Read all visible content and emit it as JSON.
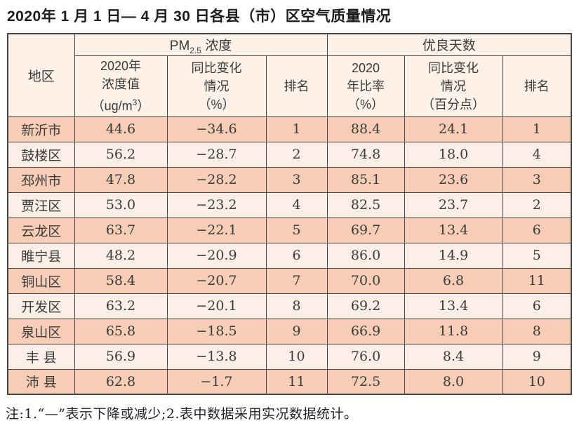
{
  "page": {
    "title": "2020年 1 月 1 日— 4 月 30 日各县（市）区空气质量情况",
    "footnote": "注:1.“—”表示下降或减少;2.表中数据采用实况数据统计。"
  },
  "colors": {
    "row_dark": "#f8cdb5",
    "row_light": "#fdeee8",
    "header_bg": "#fdf1e8",
    "border": "#454545",
    "text": "#3b3b3b"
  },
  "table": {
    "header": {
      "region": "地区",
      "pm_group": {
        "prefix": "PM",
        "sub": "2.5",
        "suffix": " 浓度"
      },
      "good_days_group": "优良天数",
      "pm_value": {
        "line1": "2020年",
        "line2": "浓度值",
        "line3_pre": "（ug/m",
        "line3_sup": "3",
        "line3_post": "）"
      },
      "pm_change": {
        "line1": "同比变化",
        "line2": "情况",
        "line3": "（%）"
      },
      "pm_rank": "排名",
      "good_ratio": {
        "line1": "2020",
        "line2": "年比率",
        "line3": "（%）"
      },
      "good_change": {
        "line1": "同比变化",
        "line2": "情况",
        "line3": "（百分点）"
      },
      "good_rank": "排名"
    },
    "rows": [
      {
        "region": "新沂市",
        "pm_value": "44.6",
        "pm_change": "−34.6",
        "pm_rank": "1",
        "good_ratio": "88.4",
        "good_change": "24.1",
        "good_rank": "1"
      },
      {
        "region": "鼓楼区",
        "pm_value": "56.2",
        "pm_change": "−28.7",
        "pm_rank": "2",
        "good_ratio": "74.8",
        "good_change": "18.0",
        "good_rank": "4"
      },
      {
        "region": "邳州市",
        "pm_value": "47.8",
        "pm_change": "−28.2",
        "pm_rank": "3",
        "good_ratio": "85.1",
        "good_change": "23.6",
        "good_rank": "3"
      },
      {
        "region": "贾汪区",
        "pm_value": "53.0",
        "pm_change": "−23.2",
        "pm_rank": "4",
        "good_ratio": "82.5",
        "good_change": "23.7",
        "good_rank": "2"
      },
      {
        "region": "云龙区",
        "pm_value": "63.7",
        "pm_change": "−22.1",
        "pm_rank": "5",
        "good_ratio": "69.7",
        "good_change": "13.4",
        "good_rank": "6"
      },
      {
        "region": "睢宁县",
        "pm_value": "48.2",
        "pm_change": "−20.9",
        "pm_rank": "6",
        "good_ratio": "86.0",
        "good_change": "14.9",
        "good_rank": "5"
      },
      {
        "region": "铜山区",
        "pm_value": "58.4",
        "pm_change": "−20.7",
        "pm_rank": "7",
        "good_ratio": "70.0",
        "good_change": "6.8",
        "good_rank": "11"
      },
      {
        "region": "开发区",
        "pm_value": "63.2",
        "pm_change": "−20.1",
        "pm_rank": "8",
        "good_ratio": "69.2",
        "good_change": "13.4",
        "good_rank": "6"
      },
      {
        "region": "泉山区",
        "pm_value": "65.8",
        "pm_change": "−18.5",
        "pm_rank": "9",
        "good_ratio": "66.9",
        "good_change": "11.8",
        "good_rank": "8"
      },
      {
        "region": "丰 县",
        "pm_value": "56.9",
        "pm_change": "−13.8",
        "pm_rank": "10",
        "good_ratio": "76.0",
        "good_change": "8.4",
        "good_rank": "9"
      },
      {
        "region": "沛 县",
        "pm_value": "62.8",
        "pm_change": "−1.7",
        "pm_rank": "11",
        "good_ratio": "72.5",
        "good_change": "8.0",
        "good_rank": "10"
      }
    ]
  }
}
